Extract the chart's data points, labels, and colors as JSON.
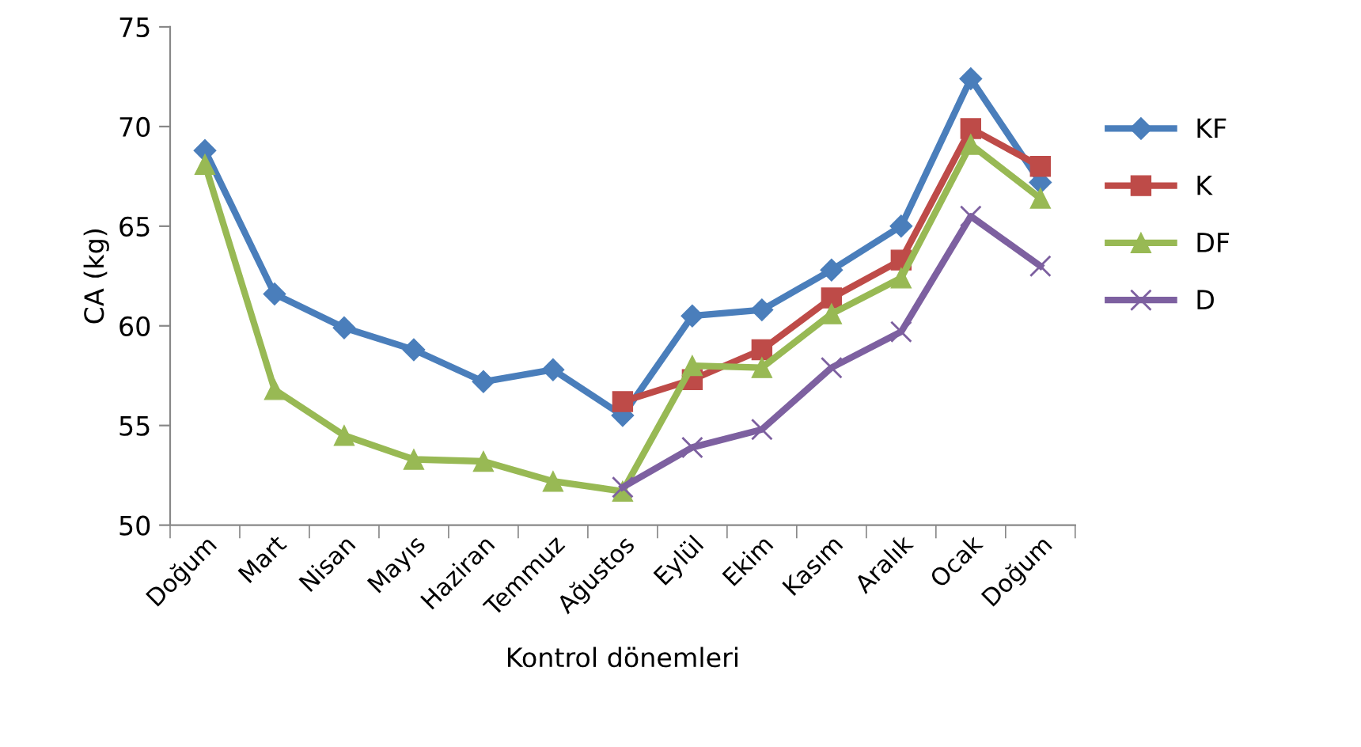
{
  "chart_data": {
    "type": "line",
    "xlabel": "Kontrol dönemleri",
    "ylabel": "CA (kg)",
    "categories": [
      "Doğum",
      "Mart",
      "Nisan",
      "Mayıs",
      "Haziran",
      "Temmuz",
      "Ağustos",
      "Eylül",
      "Ekim",
      "Kasım",
      "Aralık",
      "Ocak",
      "Doğum"
    ],
    "series": [
      {
        "name": "KF",
        "color": "#4a7ebb",
        "marker": "diamond",
        "values": [
          68.8,
          61.6,
          59.9,
          58.8,
          57.2,
          57.8,
          55.5,
          60.5,
          60.8,
          62.8,
          65.0,
          72.4,
          67.2
        ]
      },
      {
        "name": "K",
        "color": "#be4b48",
        "marker": "square",
        "values": [
          null,
          null,
          null,
          null,
          null,
          null,
          56.2,
          57.3,
          58.8,
          61.4,
          63.3,
          69.9,
          68.0
        ]
      },
      {
        "name": "DF",
        "color": "#98b954",
        "marker": "triangle",
        "values": [
          68.1,
          56.8,
          54.5,
          53.3,
          53.2,
          52.2,
          51.7,
          58.0,
          57.9,
          60.6,
          62.4,
          69.1,
          66.4
        ]
      },
      {
        "name": "D",
        "color": "#7d60a0",
        "marker": "cross",
        "values": [
          null,
          null,
          null,
          null,
          null,
          null,
          51.9,
          53.9,
          54.8,
          57.9,
          59.7,
          65.5,
          63.0
        ]
      }
    ],
    "ylim": [
      50,
      75
    ],
    "yticks": [
      50,
      55,
      60,
      65,
      70,
      75
    ],
    "grid": false,
    "legend": "right",
    "line_style": "solid"
  }
}
